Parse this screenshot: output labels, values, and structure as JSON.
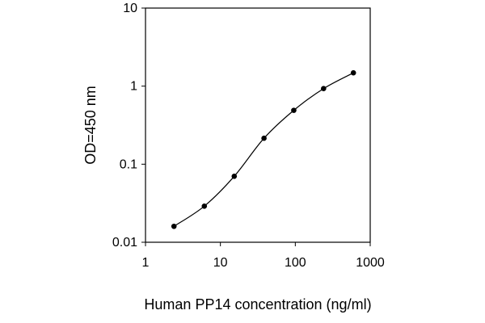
{
  "chart_data": {
    "type": "line",
    "title": "",
    "xlabel": "Human PP14 concentration (ng/ml)",
    "ylabel": "OD=450 nm",
    "x_scale": "log",
    "y_scale": "log",
    "xlim": [
      1,
      1000
    ],
    "ylim": [
      0.01,
      10
    ],
    "x_ticks": [
      1,
      10,
      100,
      1000
    ],
    "x_tick_labels": [
      "1",
      "10",
      "100",
      "1000"
    ],
    "y_ticks": [
      0.01,
      0.1,
      1,
      10
    ],
    "y_tick_labels": [
      "0.01",
      "0.1",
      "1",
      "10"
    ],
    "grid": false,
    "legend": "none",
    "series": [
      {
        "color": "#000000",
        "marker": "circle",
        "x": [
          2.4,
          6.1,
          15.3,
          38.2,
          95.4,
          238.5,
          596.3
        ],
        "y": [
          0.016,
          0.029,
          0.07,
          0.215,
          0.49,
          0.93,
          1.48
        ]
      }
    ]
  }
}
